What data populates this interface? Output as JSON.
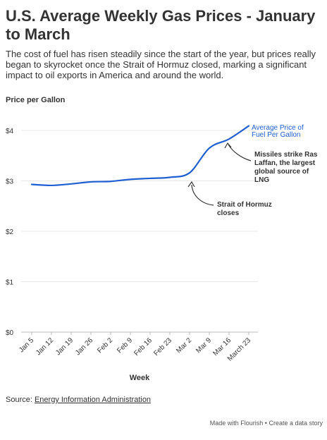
{
  "header": {
    "title": "U.S. Average Weekly Gas Prices - January to March",
    "subtitle": "The cost of fuel has risen steadily since the start of the year, but prices really began to skyrocket once the Strait of Hormuz closed, marking a significant impact to oil exports in America and around the world."
  },
  "chart_data": {
    "type": "line",
    "ylabel": "Price per Gallon",
    "xlabel": "Week",
    "ylim": [
      0,
      4
    ],
    "yticks": [
      "$0",
      "$1",
      "$2",
      "$3",
      "$4"
    ],
    "ytick_values": [
      0,
      1,
      2,
      3,
      4
    ],
    "categories": [
      "Jan 5",
      "Jan 12",
      "Jan 19",
      "Jan 26",
      "Feb 2",
      "Feb 9",
      "Feb 16",
      "Feb 23",
      "Mar 2",
      "Mar 9",
      "Mar 16",
      "March 23"
    ],
    "grid": true,
    "series": [
      {
        "name": "Average Price of Fuel Per Gallon",
        "color": "#1f5fd1",
        "values": [
          2.93,
          2.91,
          2.94,
          2.98,
          2.99,
          3.03,
          3.05,
          3.07,
          3.16,
          3.65,
          3.83,
          4.09
        ]
      }
    ],
    "annotations": [
      {
        "text": "Missiles strike Ras Laffan, the largest global source of LNG",
        "lines": [
          "Missiles strike Ras",
          "Laffan, the largest",
          "global source of",
          "LNG"
        ]
      },
      {
        "text": "Strait of Hormuz closes",
        "lines": [
          "Strait of Hormuz",
          "closes"
        ]
      }
    ]
  },
  "source": {
    "prefix": "Source: ",
    "link": "Energy Information Administration"
  },
  "footer": {
    "text": "Made with Flourish • Create a data story"
  }
}
